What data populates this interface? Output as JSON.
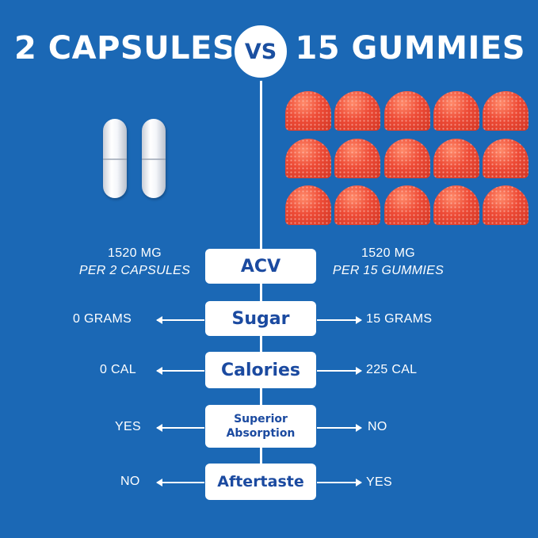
{
  "header": {
    "left_title": "2 CAPSULES",
    "vs": "VS",
    "right_title": "15 GUMMIES"
  },
  "rows": [
    {
      "label": "ACV",
      "left_line1": "1520 MG",
      "left_line2": "PER 2 CAPSULES",
      "right_line1": "1520 MG",
      "right_line2": "PER 15 GUMMIES"
    },
    {
      "label": "Sugar",
      "left": "0 GRAMS",
      "right": "15 GRAMS"
    },
    {
      "label": "Calories",
      "left": "0 CAL",
      "right": "225 CAL"
    },
    {
      "label_line1": "Superior",
      "label_line2": "Absorption",
      "left": "YES",
      "right": "NO"
    },
    {
      "label": "Aftertaste",
      "left": "NO",
      "right": "YES"
    }
  ],
  "colors": {
    "background": "#1b68b5",
    "label_text": "#1b4aa0",
    "gummy": "#e6432f",
    "white": "#ffffff"
  }
}
